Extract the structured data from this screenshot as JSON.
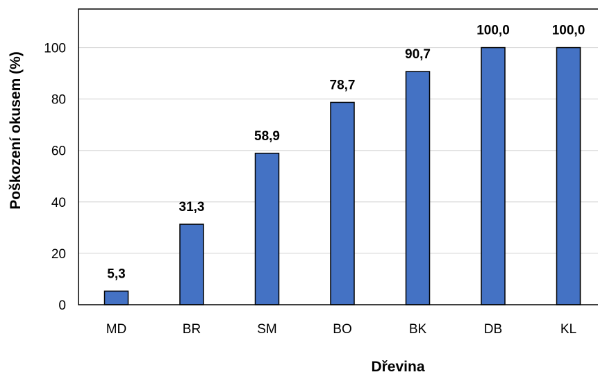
{
  "chart_data": {
    "type": "bar",
    "title": "",
    "xlabel": "Dřevina",
    "ylabel": "Poškození okusem (%)",
    "categories": [
      "MD",
      "BR",
      "SM",
      "BO",
      "BK",
      "DB",
      "KL"
    ],
    "values": [
      5.3,
      31.3,
      58.9,
      78.7,
      90.7,
      100.0,
      100.0
    ],
    "data_labels": [
      "5,3",
      "31,3",
      "58,9",
      "78,7",
      "90,7",
      "100,0",
      "100,0"
    ],
    "ylim": [
      0,
      115
    ],
    "yticks": [
      0,
      20,
      40,
      60,
      80,
      100
    ],
    "grid": "horizontal",
    "legend": "none",
    "colors": {
      "bar_fill": "#4472C4",
      "bar_stroke": "#000000",
      "grid": "#D9D9D9",
      "frame": "#000000"
    }
  }
}
